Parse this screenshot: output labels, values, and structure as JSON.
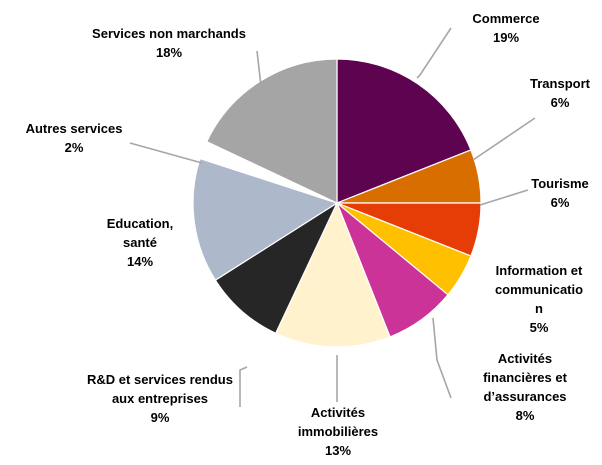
{
  "chart_data": {
    "type": "pie",
    "title": "",
    "legend": "none",
    "slices": [
      {
        "label_lines": [
          "Commerce"
        ],
        "value": 19,
        "value_label": "19%",
        "color": "#5e0350"
      },
      {
        "label_lines": [
          "Transport"
        ],
        "value": 6,
        "value_label": "6%",
        "color": "#d86e00"
      },
      {
        "label_lines": [
          "Tourisme"
        ],
        "value": 6,
        "value_label": "6%",
        "color": "#e63c06"
      },
      {
        "label_lines": [
          "Information et",
          "communicatio",
          "n"
        ],
        "value": 5,
        "value_label": "5%",
        "color": "#ffc000"
      },
      {
        "label_lines": [
          "Activités",
          "financières et",
          "d’assurances"
        ],
        "value": 8,
        "value_label": "8%",
        "color": "#cc3399"
      },
      {
        "label_lines": [
          "Activités",
          "immobilières"
        ],
        "value": 13,
        "value_label": "13%",
        "color": "#fff2cc"
      },
      {
        "label_lines": [
          "R&D et services rendus",
          "aux entreprises"
        ],
        "value": 9,
        "value_label": "9%",
        "color": "#262626"
      },
      {
        "label_lines": [
          "Education,",
          "santé"
        ],
        "value": 14,
        "value_label": "14%",
        "color": "#adb9ca"
      },
      {
        "label_lines": [
          "Autres services"
        ],
        "value": 2,
        "value_label": "2%",
        "color": "#ffffff"
      },
      {
        "label_lines": [
          "Services non marchands"
        ],
        "value": 18,
        "value_label": "18%",
        "color": "#a5a5a5"
      }
    ]
  }
}
